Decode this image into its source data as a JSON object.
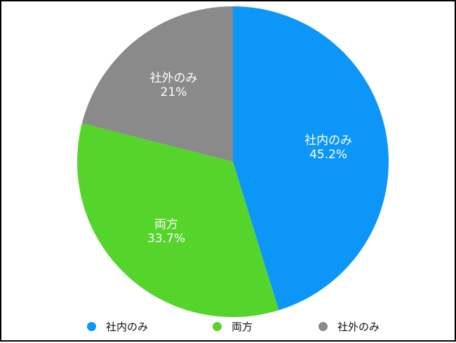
{
  "chart_data": {
    "type": "pie",
    "slices": [
      {
        "label": "社内のみ",
        "value": 45.2,
        "value_label": "45.2%",
        "color": "#0c97f8"
      },
      {
        "label": "両方",
        "value": 33.7,
        "value_label": "33.7%",
        "color": "#55d42c"
      },
      {
        "label": "社外のみ",
        "value": 21,
        "value_label": "21%",
        "color": "#8a8a8a"
      }
    ],
    "start_angle": "12 o'clock",
    "direction": "clockwise",
    "legend": "bottom"
  }
}
